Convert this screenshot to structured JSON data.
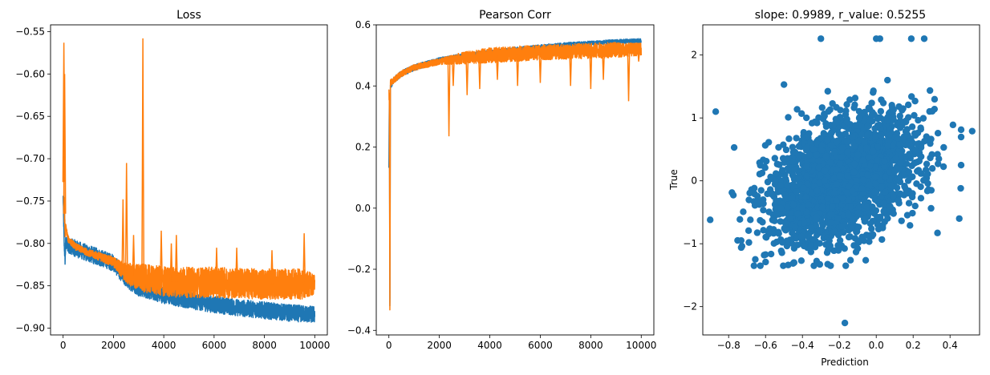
{
  "chart_data": [
    {
      "type": "line",
      "title": "Loss",
      "xlabel": "",
      "ylabel": "",
      "xlim": [
        -500,
        10500
      ],
      "ylim": [
        -0.908,
        -0.542
      ],
      "xticks": [
        0,
        2000,
        4000,
        6000,
        8000,
        10000
      ],
      "yticks": [
        -0.9,
        -0.85,
        -0.8,
        -0.75,
        -0.7,
        -0.65,
        -0.6,
        -0.55
      ],
      "ytick_labels": [
        "−0.90",
        "−0.85",
        "−0.80",
        "−0.75",
        "−0.70",
        "−0.65",
        "−0.60",
        "−0.55"
      ],
      "grid": false,
      "series": [
        {
          "color": "#1f77b4",
          "points": [
            [
              0,
              -0.745
            ],
            [
              40,
              -0.8
            ],
            [
              80,
              -0.82
            ],
            [
              100,
              -0.8
            ],
            [
              200,
              -0.802
            ],
            [
              500,
              -0.806
            ],
            [
              1000,
              -0.812
            ],
            [
              1500,
              -0.817
            ],
            [
              2000,
              -0.823
            ],
            [
              2500,
              -0.842
            ],
            [
              3000,
              -0.852
            ],
            [
              4000,
              -0.861
            ],
            [
              5000,
              -0.867
            ],
            [
              6000,
              -0.872
            ],
            [
              7000,
              -0.876
            ],
            [
              8000,
              -0.879
            ],
            [
              9000,
              -0.882
            ],
            [
              9500,
              -0.883
            ],
            [
              10000,
              -0.884
            ]
          ],
          "band": [
            0.004,
            0.006,
            0.008,
            0.008,
            0.009,
            0.01,
            0.01,
            0.01,
            0.01,
            0.01,
            0.01,
            0.01,
            0.01,
            0.01,
            0.01,
            0.01,
            0.01,
            0.01,
            0.01
          ]
        },
        {
          "color": "#ff7f0e",
          "points": [
            [
              0,
              -0.69
            ],
            [
              40,
              -0.74
            ],
            [
              80,
              -0.79
            ],
            [
              100,
              -0.78
            ],
            [
              200,
              -0.795
            ],
            [
              500,
              -0.804
            ],
            [
              1000,
              -0.811
            ],
            [
              1500,
              -0.816
            ],
            [
              2000,
              -0.822
            ],
            [
              2500,
              -0.835
            ],
            [
              3000,
              -0.84
            ],
            [
              4000,
              -0.845
            ],
            [
              5000,
              -0.846
            ],
            [
              6000,
              -0.846
            ],
            [
              7000,
              -0.847
            ],
            [
              8000,
              -0.848
            ],
            [
              9000,
              -0.848
            ],
            [
              9500,
              -0.848
            ],
            [
              10000,
              -0.848
            ]
          ],
          "band": [
            0.02,
            0.02,
            0.015,
            0.004,
            0.004,
            0.004,
            0.004,
            0.005,
            0.006,
            0.012,
            0.016,
            0.018,
            0.018,
            0.018,
            0.018,
            0.018,
            0.018,
            0.018,
            0.012
          ],
          "spikes": [
            [
              30,
              -0.563
            ],
            [
              60,
              -0.6
            ],
            [
              2380,
              -0.748
            ],
            [
              2520,
              -0.705
            ],
            [
              2800,
              -0.79
            ],
            [
              3170,
              -0.558
            ],
            [
              3900,
              -0.785
            ],
            [
              4300,
              -0.8
            ],
            [
              4500,
              -0.79
            ],
            [
              6100,
              -0.805
            ],
            [
              6900,
              -0.805
            ],
            [
              8300,
              -0.808
            ],
            [
              9580,
              -0.788
            ]
          ]
        }
      ]
    },
    {
      "type": "line",
      "title": "Pearson Corr",
      "xlabel": "",
      "ylabel": "",
      "xlim": [
        -500,
        10500
      ],
      "ylim": [
        -0.415,
        0.6
      ],
      "xticks": [
        0,
        2000,
        4000,
        6000,
        8000,
        10000
      ],
      "yticks": [
        -0.4,
        -0.2,
        0.0,
        0.2,
        0.4,
        0.6
      ],
      "ytick_labels": [
        "−0.4",
        "−0.2",
        "0.0",
        "0.2",
        "0.4",
        "0.6"
      ],
      "grid": false,
      "series": [
        {
          "color": "#1f77b4",
          "points": [
            [
              0,
              0.13
            ],
            [
              20,
              0.38
            ],
            [
              40,
              -0.38
            ],
            [
              60,
              0.4
            ],
            [
              200,
              0.42
            ],
            [
              500,
              0.44
            ],
            [
              1000,
              0.46
            ],
            [
              2000,
              0.485
            ],
            [
              3000,
              0.5
            ],
            [
              4000,
              0.51
            ],
            [
              5000,
              0.52
            ],
            [
              6000,
              0.528
            ],
            [
              7000,
              0.535
            ],
            [
              8000,
              0.54
            ],
            [
              9000,
              0.545
            ],
            [
              10000,
              0.548
            ]
          ],
          "band": [
            0.01,
            0.01,
            0.01,
            0.01,
            0.01,
            0.01,
            0.01,
            0.008,
            0.007,
            0.007,
            0.007,
            0.007,
            0.007,
            0.007,
            0.007,
            0.007
          ]
        },
        {
          "color": "#ff7f0e",
          "points": [
            [
              0,
              0.4
            ],
            [
              20,
              0.33
            ],
            [
              40,
              -0.37
            ],
            [
              60,
              0.41
            ],
            [
              200,
              0.42
            ],
            [
              500,
              0.44
            ],
            [
              1000,
              0.46
            ],
            [
              2000,
              0.48
            ],
            [
              3000,
              0.492
            ],
            [
              4000,
              0.5
            ],
            [
              5000,
              0.505
            ],
            [
              6000,
              0.51
            ],
            [
              7000,
              0.512
            ],
            [
              8000,
              0.515
            ],
            [
              9000,
              0.518
            ],
            [
              10000,
              0.52
            ]
          ],
          "band": [
            0.02,
            0.02,
            0.02,
            0.01,
            0.01,
            0.01,
            0.01,
            0.01,
            0.02,
            0.025,
            0.025,
            0.025,
            0.025,
            0.025,
            0.025,
            0.02
          ],
          "dips": [
            [
              2380,
              0.235
            ],
            [
              2550,
              0.4
            ],
            [
              3100,
              0.37
            ],
            [
              3600,
              0.39
            ],
            [
              4300,
              0.42
            ],
            [
              5100,
              0.4
            ],
            [
              6000,
              0.41
            ],
            [
              7200,
              0.4
            ],
            [
              8000,
              0.39
            ],
            [
              8500,
              0.42
            ],
            [
              9500,
              0.35
            ],
            [
              9900,
              0.48
            ]
          ]
        }
      ]
    },
    {
      "type": "scatter",
      "title": "slope: 0.9989, r_value: 0.5255",
      "xlabel": "Prediction",
      "ylabel": "True",
      "xlim": [
        -0.94,
        0.56
      ],
      "ylim": [
        -2.45,
        2.48
      ],
      "xticks": [
        -0.8,
        -0.6,
        -0.4,
        -0.2,
        0.0,
        0.2,
        0.4
      ],
      "xtick_labels": [
        "−0.8",
        "−0.6",
        "−0.4",
        "−0.2",
        "0.0",
        "0.2",
        "0.4"
      ],
      "yticks": [
        -2,
        -1,
        0,
        1,
        2
      ],
      "ytick_labels": [
        "−2",
        "−1",
        "0",
        "1",
        "2"
      ],
      "grid": false,
      "color": "#1f77b4",
      "n_points": 2400,
      "slope": 0.9989,
      "outliers": [
        [
          -0.87,
          1.1
        ],
        [
          -0.3,
          2.26
        ],
        [
          0.0,
          2.26
        ],
        [
          0.02,
          2.26
        ],
        [
          0.19,
          2.26
        ],
        [
          0.26,
          2.26
        ],
        [
          -0.17,
          -2.26
        ],
        [
          0.52,
          0.79
        ],
        [
          -0.9,
          -0.62
        ],
        [
          0.45,
          -0.6
        ],
        [
          -0.77,
          0.53
        ],
        [
          -0.5,
          1.53
        ]
      ]
    }
  ]
}
